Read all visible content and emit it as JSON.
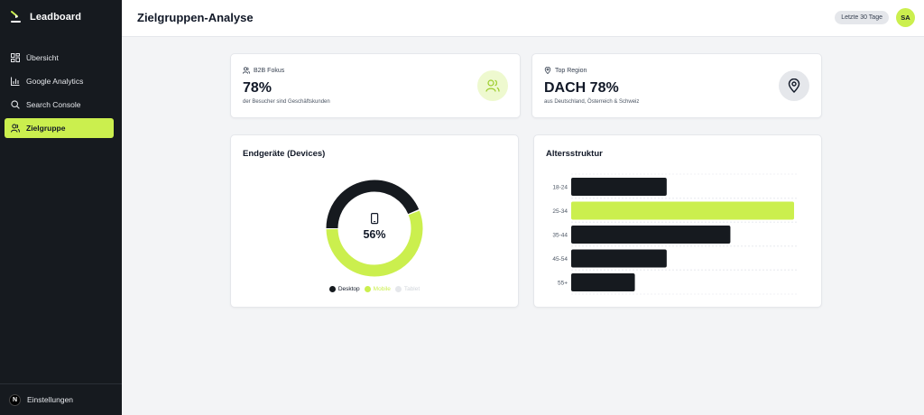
{
  "app": {
    "name": "Leadboard"
  },
  "sidebar": {
    "items": [
      {
        "label": "Übersicht",
        "icon": "dashboard-icon",
        "active": false
      },
      {
        "label": "Google Analytics",
        "icon": "bar-chart-icon",
        "active": false
      },
      {
        "label": "Search Console",
        "icon": "search-icon",
        "active": false
      },
      {
        "label": "Zielgruppe",
        "icon": "users-icon",
        "active": true
      }
    ],
    "footer": {
      "avatar_letter": "N",
      "label": "Einstellungen"
    }
  },
  "header": {
    "title": "Zielgruppen-Analyse",
    "date_range": "Letzte 30 Tage",
    "user_initials": "SA"
  },
  "kpis": [
    {
      "eyebrow": "B2B Fokus",
      "value": "78%",
      "sub": "der Besucher sind Geschäftskunden",
      "icon": "users-icon",
      "icon_bg": "#eef9cf"
    },
    {
      "eyebrow": "Top Region",
      "value": "DACH 78%",
      "sub": "aus Deutschland, Österreich & Schweiz",
      "icon": "map-pin-icon",
      "icon_bg": "#e5e7eb"
    }
  ],
  "colors": {
    "accent": "#cbef4e",
    "dark": "#161a1f",
    "muted": "#e5e7eb"
  },
  "chart_data": [
    {
      "type": "pie",
      "title": "Endgeräte (Devices)",
      "center_label": "56%",
      "center_icon": "smartphone-icon",
      "slices": [
        {
          "name": "Desktop",
          "value": 44,
          "color": "#161a1f"
        },
        {
          "name": "Mobile",
          "value": 56,
          "color": "#cbef4e"
        },
        {
          "name": "Tablet",
          "value": 0,
          "color": "#e5e7eb"
        }
      ]
    },
    {
      "type": "bar",
      "title": "Altersstruktur",
      "orientation": "horizontal",
      "categories": [
        "18-24",
        "25-34",
        "35-44",
        "45-54",
        "55+"
      ],
      "values": [
        18,
        42,
        30,
        18,
        12
      ],
      "highlight_index": 1,
      "xlim": [
        0,
        42
      ],
      "grid": true
    }
  ]
}
